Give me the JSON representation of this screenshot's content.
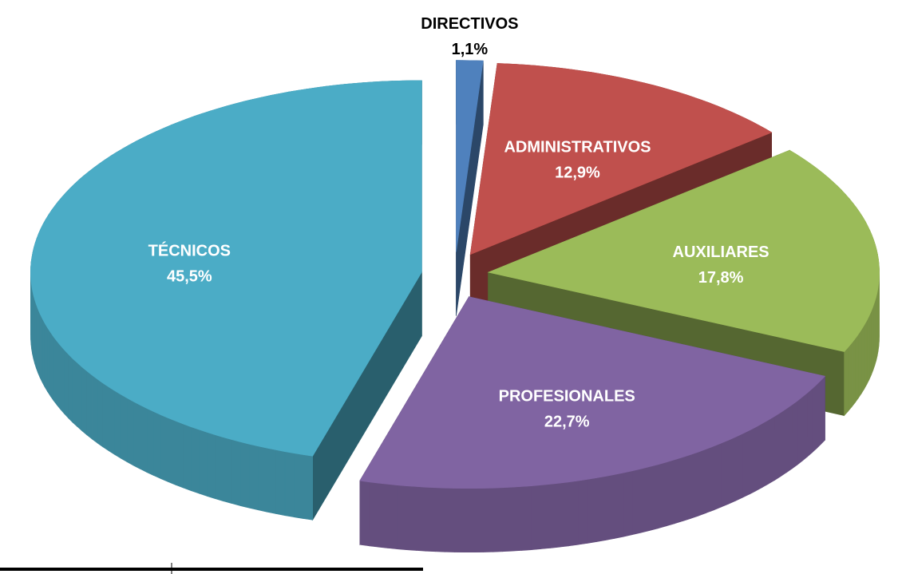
{
  "chart_data": {
    "type": "pie",
    "categories": [
      "DIRECTIVOS",
      "ADMINISTRATIVOS",
      "AUXILIARES",
      "PROFESIONALES",
      "TÉCNICOS"
    ],
    "values": [
      1.1,
      12.9,
      17.8,
      22.7,
      45.5
    ],
    "value_labels": [
      "1,1%",
      "12,9%",
      "17,8%",
      "22,7%",
      "45,5%"
    ],
    "colors": [
      "#4f81bd",
      "#c0504d",
      "#9bbb59",
      "#8064a2",
      "#4bacc6"
    ]
  }
}
